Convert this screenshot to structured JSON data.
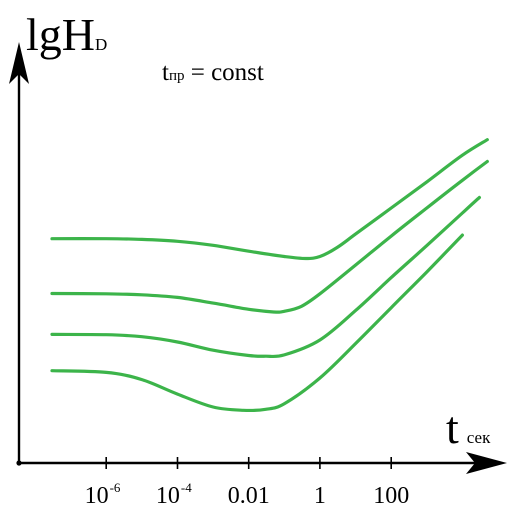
{
  "chart_data": {
    "type": "line",
    "ylabel": {
      "main": "lgH",
      "sub": "D"
    },
    "xlabel": {
      "main": "t",
      "sub": "сек"
    },
    "annotation": {
      "main": "t",
      "sub": "пр",
      "rest": " = const"
    },
    "x_scale": "log",
    "xlim": [
      3e-08,
      100000.0
    ],
    "ylim": [
      0,
      1
    ],
    "grid": false,
    "legend": "none",
    "x_ticks": [
      {
        "value": 1e-06,
        "base": "10",
        "exp": "-6"
      },
      {
        "value": 0.0001,
        "base": "10",
        "exp": "-4"
      },
      {
        "value": 0.01,
        "base": "0.01",
        "exp": ""
      },
      {
        "value": 1,
        "base": "1",
        "exp": ""
      },
      {
        "value": 100,
        "base": "100",
        "exp": ""
      }
    ],
    "series_color": "#3cb44a",
    "series": [
      {
        "x": [
          3e-08,
          1e-06,
          1e-05,
          0.0001,
          0.001,
          0.01,
          0.1,
          0.4,
          1,
          3,
          10,
          100,
          1000,
          10000.0,
          50000.0
        ],
        "y": [
          0.61,
          0.61,
          0.608,
          0.602,
          0.59,
          0.572,
          0.556,
          0.55,
          0.556,
          0.583,
          0.624,
          0.703,
          0.782,
          0.863,
          0.91
        ]
      },
      {
        "x": [
          3e-08,
          1e-06,
          1e-05,
          0.0001,
          0.001,
          0.01,
          0.05,
          0.1,
          0.3,
          1,
          10,
          100,
          1000,
          10000.0,
          50000.0
        ],
        "y": [
          0.444,
          0.443,
          0.44,
          0.432,
          0.415,
          0.396,
          0.388,
          0.39,
          0.405,
          0.443,
          0.53,
          0.618,
          0.703,
          0.787,
          0.844
        ]
      },
      {
        "x": [
          3e-08,
          1e-06,
          1e-05,
          0.0001,
          0.001,
          0.01,
          0.03,
          0.1,
          1,
          10,
          100,
          1000,
          10000.0,
          30000.0
        ],
        "y": [
          0.32,
          0.319,
          0.313,
          0.297,
          0.272,
          0.256,
          0.254,
          0.258,
          0.303,
          0.392,
          0.492,
          0.589,
          0.688,
          0.735
        ]
      },
      {
        "x": [
          3e-08,
          1e-06,
          1e-05,
          0.0001,
          0.001,
          0.007,
          0.03,
          0.1,
          1,
          10,
          100,
          1000,
          10000.0
        ],
        "y": [
          0.21,
          0.205,
          0.183,
          0.139,
          0.1,
          0.09,
          0.093,
          0.11,
          0.188,
          0.292,
          0.401,
          0.509,
          0.621
        ]
      }
    ]
  }
}
